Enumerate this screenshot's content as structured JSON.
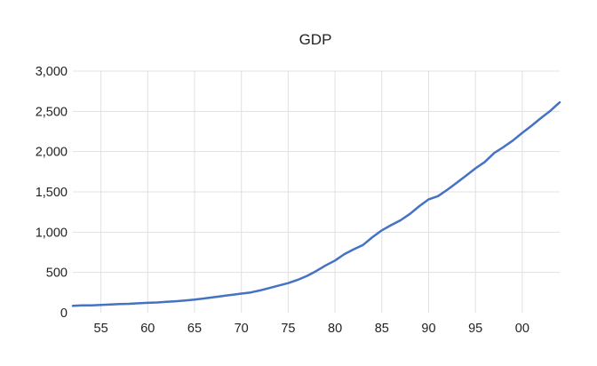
{
  "chart_data": {
    "type": "line",
    "title": "GDP",
    "xlabel": "",
    "ylabel": "",
    "xlim": [
      1952,
      2004
    ],
    "ylim": [
      0,
      3000
    ],
    "grid": true,
    "legend": "none",
    "colors": {
      "line": "#4472c4",
      "grid": "#e0e0e0",
      "text": "#222222",
      "background": "#ffffff"
    },
    "x_ticks": [
      {
        "value": 1955,
        "label": "55"
      },
      {
        "value": 1960,
        "label": "60"
      },
      {
        "value": 1965,
        "label": "65"
      },
      {
        "value": 1970,
        "label": "70"
      },
      {
        "value": 1975,
        "label": "75"
      },
      {
        "value": 1980,
        "label": "80"
      },
      {
        "value": 1985,
        "label": "85"
      },
      {
        "value": 1990,
        "label": "90"
      },
      {
        "value": 1995,
        "label": "95"
      },
      {
        "value": 2000,
        "label": "00"
      }
    ],
    "y_ticks": [
      {
        "value": 0,
        "label": "0"
      },
      {
        "value": 500,
        "label": "500"
      },
      {
        "value": 1000,
        "label": "1,000"
      },
      {
        "value": 1500,
        "label": "1,500"
      },
      {
        "value": 2000,
        "label": "2,000"
      },
      {
        "value": 2500,
        "label": "2,500"
      },
      {
        "value": 3000,
        "label": "3,000"
      }
    ],
    "series": [
      {
        "x": [
          1952,
          1953,
          1954,
          1955,
          1956,
          1957,
          1958,
          1959,
          1960,
          1961,
          1962,
          1963,
          1964,
          1965,
          1966,
          1967,
          1968,
          1969,
          1970,
          1971,
          1972,
          1973,
          1974,
          1975,
          1976,
          1977,
          1978,
          1979,
          1980,
          1981,
          1982,
          1983,
          1984,
          1985,
          1986,
          1987,
          1988,
          1989,
          1990,
          1991,
          1992,
          1993,
          1994,
          1995,
          1996,
          1997,
          1998,
          1999,
          2000,
          2001,
          2002,
          2003,
          2004
        ],
        "values": [
          85,
          90,
          92,
          97,
          102,
          107,
          110,
          117,
          122,
          127,
          135,
          142,
          152,
          162,
          177,
          192,
          207,
          222,
          237,
          252,
          277,
          307,
          337,
          367,
          407,
          457,
          517,
          587,
          647,
          727,
          787,
          842,
          937,
          1022,
          1087,
          1147,
          1227,
          1322,
          1407,
          1447,
          1527,
          1612,
          1702,
          1792,
          1872,
          1982,
          2057,
          2137,
          2232,
          2322,
          2417,
          2507,
          2612
        ]
      }
    ]
  }
}
